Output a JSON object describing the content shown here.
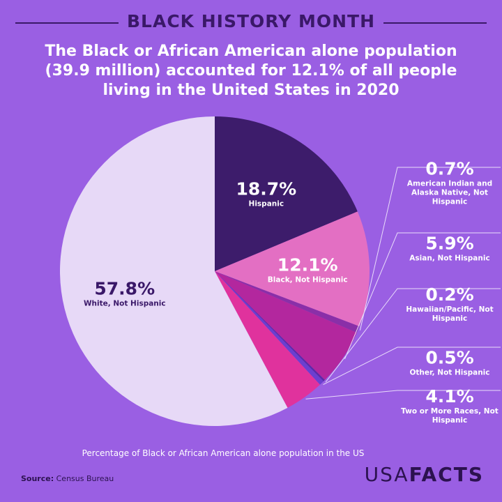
{
  "header": {
    "kicker": "BLACK HISTORY MONTH",
    "headline": "The Black or African American alone population (39.9 million) accounted for 12.1% of all people living in the United States in 2020"
  },
  "chart_data": {
    "type": "pie",
    "categories": [
      "Hispanic",
      "Black, Not Hispanic",
      "American Indian and Alaska Native, Not Hispanic",
      "Asian, Not Hispanic",
      "Hawaiian/Pacific, Not Hispanic",
      "Other, Not Hispanic",
      "Two or More Races, Not Hispanic",
      "White, Not Hispanic"
    ],
    "values": [
      18.7,
      12.1,
      0.7,
      5.9,
      0.2,
      0.5,
      4.1,
      57.8
    ],
    "value_labels": [
      "18.7%",
      "12.1%",
      "0.7%",
      "5.9%",
      "0.2%",
      "0.5%",
      "4.1%",
      "57.8%"
    ],
    "colors": [
      "#3d1c6b",
      "#e36fc3",
      "#8a2fa8",
      "#b3279e",
      "#5b2aa8",
      "#6b3fd0",
      "#e0329d",
      "#e7d9f7"
    ],
    "caption": "Percentage of Black or African American alone population in the US"
  },
  "footer": {
    "source_label": "Source:",
    "source": "Census Bureau",
    "logo_a": "USA",
    "logo_b": "FACTS"
  }
}
